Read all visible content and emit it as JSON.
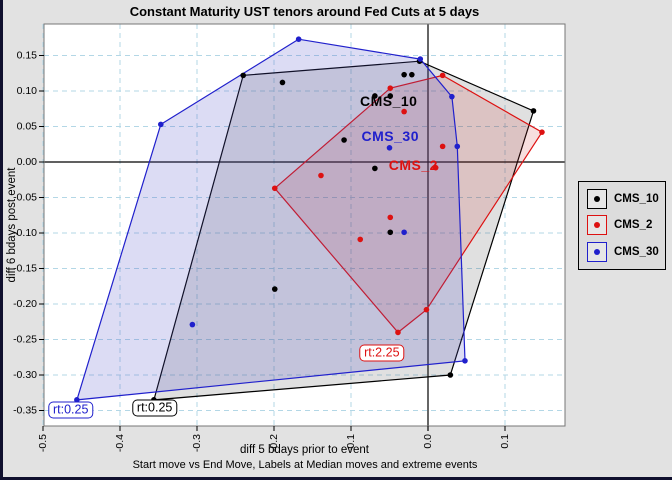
{
  "chart_data": {
    "type": "scatter",
    "title": "Constant Maturity UST tenors around Fed Cuts at 5 days",
    "xlabel": "diff 5 bdays prior to event",
    "x_note": "Start move vs End Move, Labels at Median moves and extreme events",
    "ylabel": "diff 6 bdays post event",
    "x_ticks": [
      -0.5,
      -0.4,
      -0.3,
      -0.2,
      -0.1,
      0.0,
      0.1
    ],
    "y_ticks": [
      0.15,
      0.1,
      0.05,
      0.0,
      -0.05,
      -0.1,
      -0.15,
      -0.2,
      -0.25,
      -0.3,
      -0.35
    ],
    "x_range": [
      -0.505,
      0.178
    ],
    "y_range": [
      -0.372,
      0.194
    ],
    "grid": true,
    "grid_color": "#b3d7e6",
    "legend_position": "right",
    "series": [
      {
        "name": "CMS_10",
        "color": "#000000",
        "fill": "#404040",
        "fill_opacity": 0.16,
        "hull": [
          [
            -0.24,
            0.122
          ],
          [
            -0.011,
            0.142
          ],
          [
            0.137,
            0.072
          ],
          [
            0.029,
            -0.3
          ],
          [
            -0.356,
            -0.335
          ]
        ],
        "points": [
          [
            -0.24,
            0.122
          ],
          [
            -0.189,
            0.112
          ],
          [
            -0.069,
            0.093
          ],
          [
            -0.049,
            0.093
          ],
          [
            -0.031,
            0.123
          ],
          [
            -0.021,
            0.123
          ],
          [
            -0.011,
            0.142
          ],
          [
            0.137,
            0.072
          ],
          [
            -0.109,
            0.031
          ],
          [
            -0.069,
            -0.009
          ],
          [
            -0.049,
            -0.099
          ],
          [
            -0.199,
            -0.179
          ],
          [
            0.029,
            -0.3
          ],
          [
            -0.356,
            -0.335
          ]
        ],
        "median_label": {
          "text": "CMS_10",
          "x": -0.051,
          "y": 0.086
        },
        "extreme_label": {
          "text": "rt:0.25",
          "x": -0.355,
          "y": -0.346
        }
      },
      {
        "name": "CMS_2",
        "color": "#dd1111",
        "fill": "#cc2222",
        "fill_opacity": 0.15,
        "hull": [
          [
            -0.199,
            -0.037
          ],
          [
            -0.049,
            0.104
          ],
          [
            0.019,
            0.122
          ],
          [
            0.148,
            0.042
          ],
          [
            -0.002,
            -0.208
          ],
          [
            -0.039,
            -0.24
          ]
        ],
        "points": [
          [
            -0.199,
            -0.037
          ],
          [
            -0.049,
            0.104
          ],
          [
            0.019,
            0.122
          ],
          [
            0.148,
            0.042
          ],
          [
            -0.002,
            -0.208
          ],
          [
            -0.039,
            -0.24
          ],
          [
            -0.139,
            -0.019
          ],
          [
            -0.031,
            0.071
          ],
          [
            0.01,
            -0.008
          ],
          [
            0.019,
            0.022
          ],
          [
            -0.049,
            -0.078
          ],
          [
            -0.088,
            -0.109
          ]
        ],
        "median_label": {
          "text": "CMS_2",
          "x": -0.019,
          "y": -0.004
        },
        "extreme_label": {
          "text": "rt:2.25",
          "x": -0.06,
          "y": -0.269
        }
      },
      {
        "name": "CMS_30",
        "color": "#2020cc",
        "fill": "#5050c8",
        "fill_opacity": 0.2,
        "hull": [
          [
            -0.347,
            0.053
          ],
          [
            -0.168,
            0.173
          ],
          [
            -0.01,
            0.145
          ],
          [
            0.031,
            0.092
          ],
          [
            0.038,
            0.022
          ],
          [
            0.048,
            -0.28
          ],
          [
            -0.456,
            -0.335
          ]
        ],
        "points": [
          [
            -0.347,
            0.053
          ],
          [
            -0.168,
            0.173
          ],
          [
            -0.01,
            0.145
          ],
          [
            0.031,
            0.092
          ],
          [
            0.038,
            0.022
          ],
          [
            0.048,
            -0.28
          ],
          [
            -0.456,
            -0.335
          ],
          [
            -0.306,
            -0.229
          ],
          [
            -0.031,
            -0.099
          ],
          [
            -0.05,
            0.02
          ]
        ],
        "median_label": {
          "text": "CMS_30",
          "x": -0.049,
          "y": 0.037
        },
        "extreme_label": {
          "text": "rt:0.25",
          "x": -0.464,
          "y": -0.349
        }
      }
    ]
  },
  "legend": {
    "entries": [
      {
        "label": "CMS_10",
        "color": "#000000"
      },
      {
        "label": "CMS_2",
        "color": "#dd1111"
      },
      {
        "label": "CMS_30",
        "color": "#2020cc"
      }
    ]
  }
}
